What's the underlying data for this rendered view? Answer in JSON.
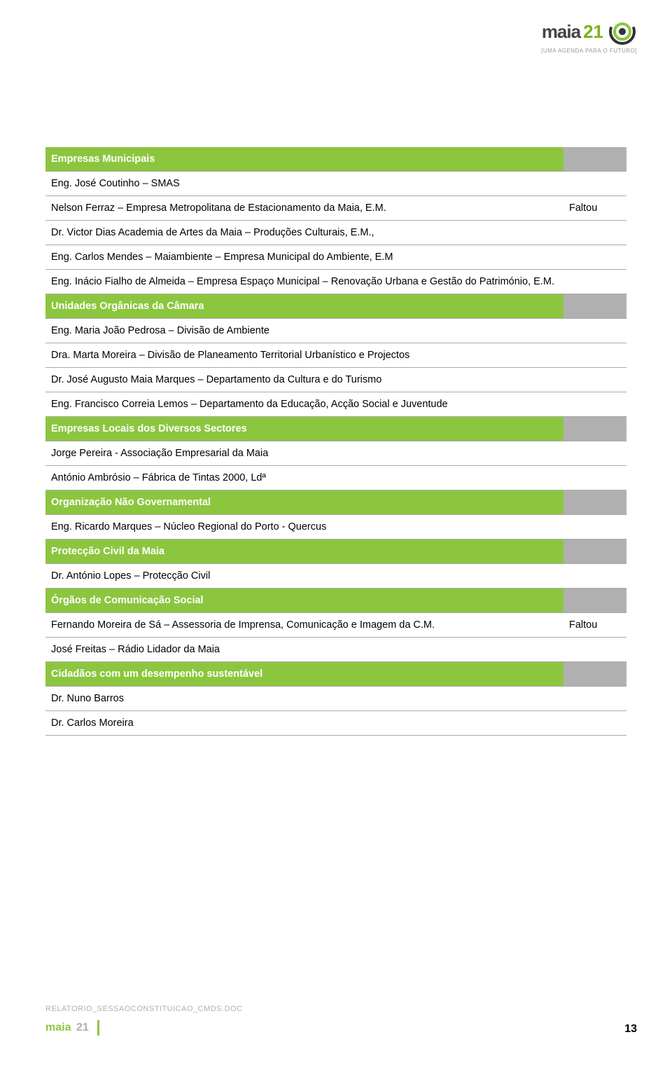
{
  "logo": {
    "brand_black": "maia",
    "brand_green": "21",
    "tagline": "[UMA AGENDA PARA O FUTURO]"
  },
  "colors": {
    "header_bg": "#8cc63f",
    "header_text": "#ffffff",
    "header_col2_bg": "#b0b0b0",
    "border": "#aaaaaa",
    "text": "#000000",
    "brand_green": "#8cc63f",
    "footer_grey": "#b0b0b0"
  },
  "rows": [
    {
      "type": "header",
      "c1": "Empresas Municipais",
      "c2": ""
    },
    {
      "type": "data",
      "c1": "Eng. José Coutinho – SMAS",
      "c2": ""
    },
    {
      "type": "data",
      "c1": "Nelson Ferraz – Empresa Metropolitana de Estacionamento da Maia, E.M.",
      "c2": "Faltou"
    },
    {
      "type": "data",
      "c1": "Dr. Victor Dias Academia de Artes da Maia – Produções Culturais, E.M.,",
      "c2": ""
    },
    {
      "type": "data",
      "c1": "Eng. Carlos Mendes – Maiambiente – Empresa Municipal do Ambiente, E.M",
      "c2": ""
    },
    {
      "type": "data",
      "c1": "Eng. Inácio Fialho de Almeida – Empresa Espaço Municipal – Renovação Urbana e Gestão do Património, E.M.",
      "c2": ""
    },
    {
      "type": "header",
      "c1": "Unidades Orgânicas da Câmara",
      "c2": ""
    },
    {
      "type": "data",
      "c1": "Eng. Maria João Pedrosa – Divisão de Ambiente",
      "c2": ""
    },
    {
      "type": "data",
      "c1": "Dra. Marta Moreira – Divisão de Planeamento Territorial Urbanístico e Projectos",
      "c2": ""
    },
    {
      "type": "data",
      "c1": "Dr. José Augusto Maia Marques – Departamento da Cultura e do Turismo",
      "c2": ""
    },
    {
      "type": "data",
      "c1": "Eng. Francisco Correia Lemos – Departamento da Educação, Acção Social e Juventude",
      "c2": ""
    },
    {
      "type": "header",
      "c1": "Empresas Locais dos Diversos Sectores",
      "c2": ""
    },
    {
      "type": "data",
      "c1": "Jorge Pereira - Associação Empresarial da Maia",
      "c2": ""
    },
    {
      "type": "data",
      "c1": "António Ambrósio – Fábrica de Tintas 2000, Ldª",
      "c2": ""
    },
    {
      "type": "header",
      "c1": "Organização Não Governamental",
      "c2": ""
    },
    {
      "type": "data",
      "c1": "Eng. Ricardo Marques – Núcleo Regional do Porto - Quercus",
      "c2": ""
    },
    {
      "type": "header",
      "c1": "Protecção Civil da Maia",
      "c2": ""
    },
    {
      "type": "data",
      "c1": "Dr. António Lopes –  Protecção Civil",
      "c2": ""
    },
    {
      "type": "header",
      "c1": "Órgãos de Comunicação Social",
      "c2": ""
    },
    {
      "type": "data",
      "c1": "Fernando Moreira de Sá – Assessoria de Imprensa, Comunicação e Imagem da C.M.",
      "c2": "Faltou"
    },
    {
      "type": "data",
      "c1": "José Freitas – Rádio Lidador da Maia",
      "c2": ""
    },
    {
      "type": "header",
      "c1": "Cidadãos com um desempenho sustentável",
      "c2": ""
    },
    {
      "type": "data",
      "c1": "Dr. Nuno Barros",
      "c2": ""
    },
    {
      "type": "data",
      "c1": "Dr. Carlos Moreira",
      "c2": ""
    }
  ],
  "footer": {
    "doc": "RELATORIO_SESSAOCONSTITUICAO_CMDS.DOC",
    "brand_green": "maia",
    "brand_grey": "21",
    "page": "13"
  }
}
